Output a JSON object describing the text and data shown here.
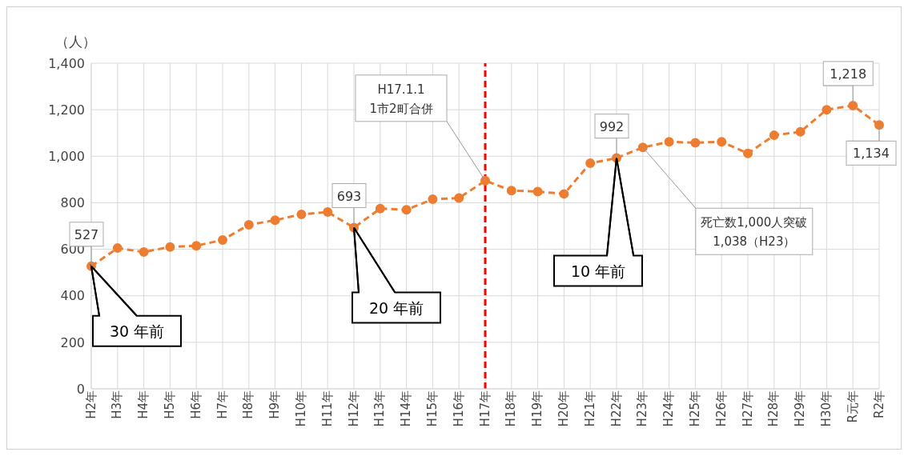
{
  "chart_data": {
    "type": "line",
    "ylabel": "（人）",
    "categories": [
      "H2年",
      "H3年",
      "H4年",
      "H5年",
      "H6年",
      "H7年",
      "H8年",
      "H9年",
      "H10年",
      "H11年",
      "H12年",
      "H13年",
      "H14年",
      "H15年",
      "H16年",
      "H17年",
      "H18年",
      "H19年",
      "H20年",
      "H21年",
      "H22年",
      "H23年",
      "H24年",
      "H25年",
      "H26年",
      "H27年",
      "H28年",
      "H29年",
      "H30年",
      "R元年",
      "R2年"
    ],
    "series": [
      {
        "color": "#ed7d31",
        "values": [
          527,
          605,
          588,
          610,
          615,
          640,
          705,
          725,
          750,
          760,
          693,
          775,
          770,
          815,
          820,
          895,
          852,
          848,
          838,
          970,
          992,
          1038,
          1062,
          1058,
          1062,
          1012,
          1090,
          1105,
          1200,
          1218,
          1134
        ],
        "value_labels": [
          "527",
          null,
          null,
          null,
          null,
          null,
          null,
          null,
          null,
          null,
          "693",
          null,
          null,
          null,
          null,
          null,
          null,
          null,
          null,
          null,
          "992",
          null,
          null,
          null,
          null,
          null,
          null,
          null,
          null,
          "1,218",
          "1,134"
        ]
      }
    ],
    "ylim": [
      0,
      1400
    ],
    "yticks": [
      0,
      {
        "value": 200,
        "label": "200"
      },
      {
        "value": 400,
        "label": "400"
      },
      {
        "value": 600,
        "label": "600"
      },
      {
        "value": 800,
        "label": "800"
      },
      {
        "value": 1000,
        "label": "1,000"
      },
      {
        "value": 1200,
        "label": "1,200"
      },
      {
        "value": 1400,
        "label": "1,400"
      }
    ],
    "grid": true,
    "legend": false,
    "marker": "circle",
    "line_style": "dashed",
    "ref_lines": [
      {
        "axis": "x",
        "value": "H17年",
        "color": "#ff0000",
        "line_style": "dashed"
      }
    ],
    "annotations": [
      {
        "text": "30 年前",
        "x": "H2年",
        "y": 527
      },
      {
        "text": "20 年前",
        "x": "H12年",
        "y": 693
      },
      {
        "text": "10 年前",
        "x": "H22年",
        "y": 992
      },
      {
        "text": "H17.1.1\n1市2町合併",
        "x": "H17年",
        "y": 895
      },
      {
        "text": "死亡数1,000人突破\n1,038（H23）",
        "x": "H23年",
        "y": 1038
      }
    ]
  }
}
